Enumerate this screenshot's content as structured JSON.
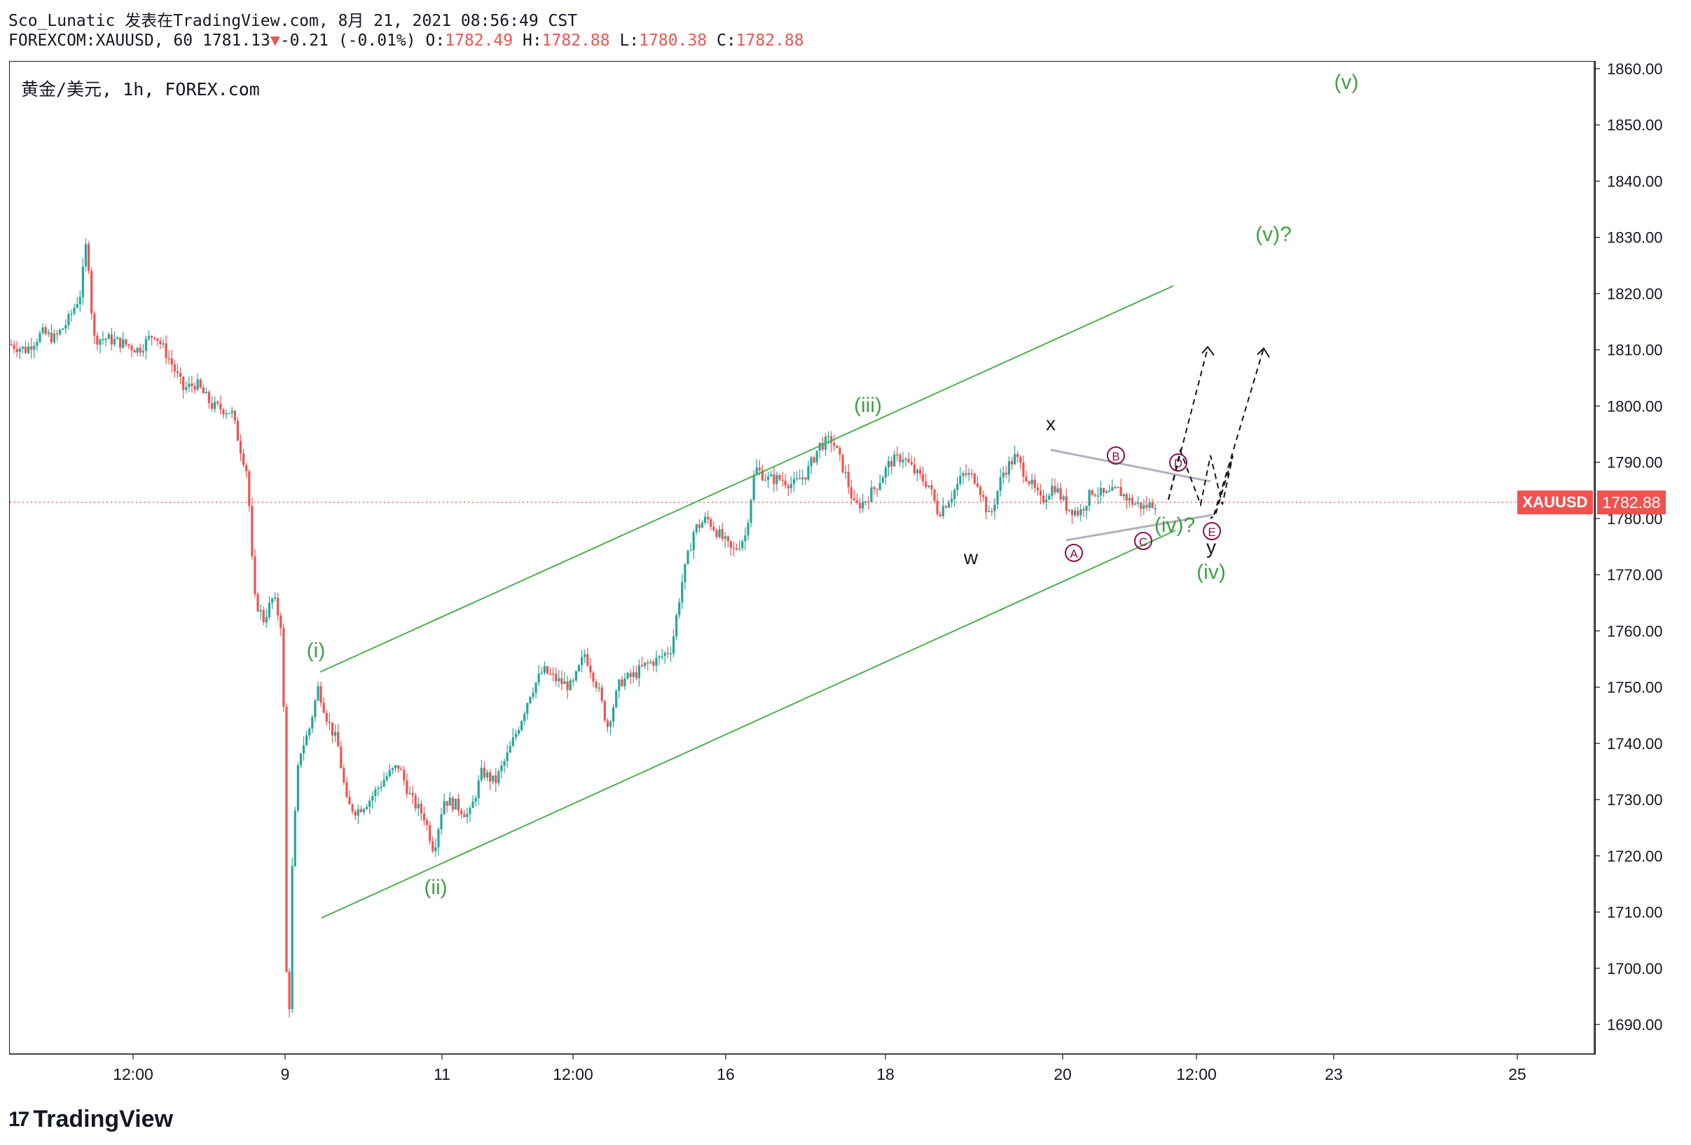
{
  "header": {
    "publisher_line": "Sco_Lunatic 发表在TradingView.com, 8月 21, 2021 08:56:49 CST",
    "symbol_line_prefix": "FOREXCOM:XAUUSD, 60 1781.13",
    "change_arrow": "▼",
    "change": "-0.21 (-0.01%)",
    "o_label": "O:",
    "o_value": "1782.49",
    "h_label": "H:",
    "h_value": "1782.88",
    "l_label": "L:",
    "l_value": "1780.38",
    "c_label": "C:",
    "c_value": "1782.88"
  },
  "symbol_title": "黄金/美元, 1h, FOREX.com",
  "price_tag": {
    "symbol": "XAUUSD",
    "value": "1782.88"
  },
  "logo": {
    "mark": "17",
    "text": "TradingView",
    "icon": "tradingview-logo-icon"
  },
  "colors": {
    "up": "#26a69a",
    "down": "#ef5350",
    "channel": "#4caf50",
    "wave_label": "#43a047",
    "triangle": "#b2b0bc",
    "letter": "#880e4f"
  },
  "chart_data": {
    "type": "candlestick",
    "symbol": "FOREXCOM:XAUUSD",
    "interval": "1h",
    "ylim": [
      1685,
      1863
    ],
    "y_ticks": [
      "1860.00",
      "1850.00",
      "1840.00",
      "1830.00",
      "1820.00",
      "1810.00",
      "1800.00",
      "1790.00",
      "1780.00",
      "1770.00",
      "1760.00",
      "1750.00",
      "1730.00",
      "1720.00",
      "1710.00",
      "1700.00",
      "1690.00"
    ],
    "y_ticks_full": [
      "1860.00",
      "1850.00",
      "1840.00",
      "1830.00",
      "1820.00",
      "1810.00",
      "1800.00",
      "1790.00",
      "1780.00",
      "1770.00",
      "1760.00",
      "1750.00",
      "1740.00",
      "1730.00",
      "1720.00",
      "1710.00",
      "1700.00",
      "1690.00"
    ],
    "x_ticks": [
      "12:00",
      "9",
      "11",
      "12:00",
      "16",
      "18",
      "20",
      "12:00",
      "23",
      "25"
    ],
    "last_price": 1782.88,
    "price_path": [
      [
        0,
        1811
      ],
      [
        0.5,
        1810
      ],
      [
        1,
        1813
      ],
      [
        1.4,
        1812
      ],
      [
        1.8,
        1815
      ],
      [
        2.2,
        1820
      ],
      [
        2.4,
        1830
      ],
      [
        2.6,
        1812
      ],
      [
        3,
        1812
      ],
      [
        3.6,
        1811
      ],
      [
        4,
        1810
      ],
      [
        4.5,
        1813
      ],
      [
        5,
        1808
      ],
      [
        5.4,
        1803
      ],
      [
        5.8,
        1804
      ],
      [
        6.3,
        1800
      ],
      [
        6.9,
        1799
      ],
      [
        7.2,
        1792
      ],
      [
        7.4,
        1788
      ],
      [
        7.6,
        1766
      ],
      [
        7.9,
        1762
      ],
      [
        8.2,
        1766
      ],
      [
        8.5,
        1760
      ],
      [
        8.6,
        1700
      ],
      [
        8.7,
        1693
      ],
      [
        8.8,
        1720
      ],
      [
        9.0,
        1738
      ],
      [
        9.3,
        1742
      ],
      [
        9.6,
        1750
      ],
      [
        9.9,
        1744
      ],
      [
        10.2,
        1740
      ],
      [
        10.5,
        1729
      ],
      [
        10.8,
        1728
      ],
      [
        11.2,
        1730
      ],
      [
        11.7,
        1734
      ],
      [
        12.1,
        1736
      ],
      [
        12.5,
        1730
      ],
      [
        12.9,
        1727
      ],
      [
        13.2,
        1721
      ],
      [
        13.5,
        1730
      ],
      [
        13.9,
        1729
      ],
      [
        14.3,
        1727
      ],
      [
        14.7,
        1735
      ],
      [
        15.1,
        1733
      ],
      [
        15.5,
        1738
      ],
      [
        15.9,
        1744
      ],
      [
        16.2,
        1749
      ],
      [
        16.6,
        1753
      ],
      [
        17.1,
        1751
      ],
      [
        17.5,
        1750
      ],
      [
        17.9,
        1756
      ],
      [
        18.3,
        1750
      ],
      [
        18.6,
        1743
      ],
      [
        19.0,
        1751
      ],
      [
        19.4,
        1752
      ],
      [
        19.8,
        1754
      ],
      [
        20.2,
        1755
      ],
      [
        20.6,
        1757
      ],
      [
        20.9,
        1768
      ],
      [
        21.3,
        1778
      ],
      [
        21.7,
        1780
      ],
      [
        22.1,
        1777
      ],
      [
        22.5,
        1774
      ],
      [
        22.9,
        1777
      ],
      [
        23.2,
        1789
      ],
      [
        23.6,
        1787
      ],
      [
        24.0,
        1787
      ],
      [
        24.4,
        1786
      ],
      [
        24.8,
        1788
      ],
      [
        25.2,
        1793
      ],
      [
        25.6,
        1794
      ],
      [
        26.0,
        1788
      ],
      [
        26.3,
        1782
      ],
      [
        26.6,
        1783
      ],
      [
        27.0,
        1786
      ],
      [
        27.4,
        1790
      ],
      [
        27.8,
        1791
      ],
      [
        28.2,
        1788
      ],
      [
        28.6,
        1786
      ],
      [
        28.9,
        1781
      ],
      [
        29.3,
        1784
      ],
      [
        29.7,
        1788
      ],
      [
        30.1,
        1787
      ],
      [
        30.5,
        1780
      ],
      [
        30.9,
        1788
      ],
      [
        31.3,
        1791
      ],
      [
        31.7,
        1787
      ],
      [
        32.1,
        1783
      ],
      [
        32.5,
        1786
      ],
      [
        32.9,
        1782
      ],
      [
        33.3,
        1781
      ],
      [
        33.7,
        1785
      ],
      [
        34.1,
        1784
      ],
      [
        34.5,
        1785
      ],
      [
        34.9,
        1783
      ],
      [
        35.3,
        1782
      ],
      [
        35.7,
        1783
      ]
    ]
  },
  "wave_labels": [
    {
      "text": "(i)",
      "color": "green"
    },
    {
      "text": "(ii)",
      "color": "green"
    },
    {
      "text": "(iii)",
      "color": "green"
    },
    {
      "text": "(iv)",
      "color": "green"
    },
    {
      "text": "(iv)?",
      "color": "green"
    },
    {
      "text": "(v)",
      "color": "green"
    },
    {
      "text": "(v)?",
      "color": "green"
    },
    {
      "text": "w",
      "color": "black"
    },
    {
      "text": "x",
      "color": "black"
    },
    {
      "text": "y",
      "color": "black"
    }
  ],
  "triangle_points": [
    "A",
    "B",
    "C",
    "D",
    "E"
  ]
}
